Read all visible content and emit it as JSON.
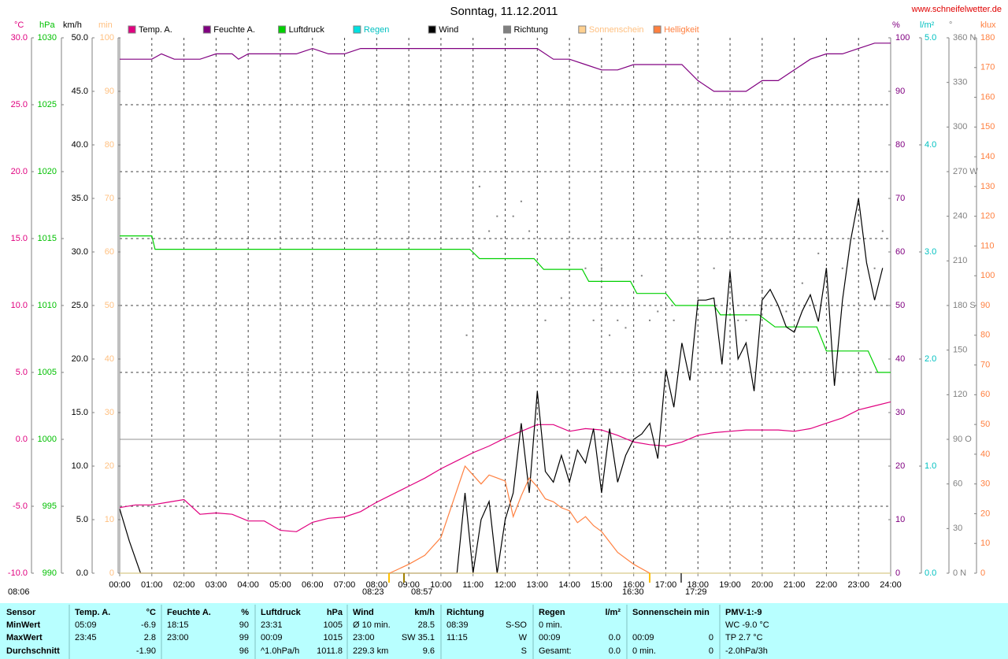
{
  "chart_data": {
    "type": "line",
    "title": "Sonntag, 11.12.2011",
    "source": "www.schneifelwetter.de",
    "grid": true,
    "xlim": [
      0,
      24
    ],
    "xticks": [
      {
        "value": 0,
        "label": "00:00"
      },
      {
        "value": 1,
        "label": "01:00"
      },
      {
        "value": 2,
        "label": "02:00"
      },
      {
        "value": 3,
        "label": "03:00"
      },
      {
        "value": 4,
        "label": "04:00"
      },
      {
        "value": 5,
        "label": "05:00"
      },
      {
        "value": 6,
        "label": "06:00"
      },
      {
        "value": 7,
        "label": "07:00"
      },
      {
        "value": 8,
        "label": "08:00"
      },
      {
        "value": 9,
        "label": "09:00"
      },
      {
        "value": 10,
        "label": "10:00"
      },
      {
        "value": 11,
        "label": "11:00"
      },
      {
        "value": 12,
        "label": "12:00"
      },
      {
        "value": 13,
        "label": "13:00"
      },
      {
        "value": 14,
        "label": "14:00"
      },
      {
        "value": 15,
        "label": "15:00"
      },
      {
        "value": 16,
        "label": "16:00"
      },
      {
        "value": 17,
        "label": "17:00"
      },
      {
        "value": 18,
        "label": "18:00"
      },
      {
        "value": 19,
        "label": "19:00"
      },
      {
        "value": 20,
        "label": "20:00"
      },
      {
        "value": 21,
        "label": "21:00"
      },
      {
        "value": 22,
        "label": "22:00"
      },
      {
        "value": 23,
        "label": "23:00"
      },
      {
        "value": 24,
        "label": "24:00"
      }
    ],
    "axes": [
      {
        "label": "°C",
        "color": "#e0007f",
        "lim": [
          -10,
          30
        ],
        "ticks": [
          {
            "value": -10,
            "label": "-10.0"
          },
          {
            "value": -5,
            "label": "-5.0"
          },
          {
            "value": 0,
            "label": "0.0"
          },
          {
            "value": 5,
            "label": "5.0"
          },
          {
            "value": 10,
            "label": "10.0"
          },
          {
            "value": 15,
            "label": "15.0"
          },
          {
            "value": 20,
            "label": "20.0"
          },
          {
            "value": 25,
            "label": "25.0"
          },
          {
            "value": 30,
            "label": "30.0"
          }
        ]
      },
      {
        "label": "hPa",
        "color": "#00c000",
        "lim": [
          990,
          1030
        ],
        "ticks": [
          990,
          995,
          1000,
          1005,
          1010,
          1015,
          1020,
          1025,
          1030
        ]
      },
      {
        "label": "km/h",
        "color": "#000000",
        "lim": [
          0,
          50
        ],
        "ticks": [
          {
            "value": 0,
            "label": "0.0"
          },
          {
            "value": 5,
            "label": "5.0"
          },
          {
            "value": 10,
            "label": "10.0"
          },
          {
            "value": 15,
            "label": "15.0"
          },
          {
            "value": 20,
            "label": "20.0"
          },
          {
            "value": 25,
            "label": "25.0"
          },
          {
            "value": 30,
            "label": "30.0"
          },
          {
            "value": 35,
            "label": "35.0"
          },
          {
            "value": 40,
            "label": "40.0"
          },
          {
            "value": 45,
            "label": "45.0"
          },
          {
            "value": 50,
            "label": "50.0"
          }
        ]
      },
      {
        "label": "min",
        "color": "#ffc080",
        "lim": [
          0,
          100
        ],
        "ticks": [
          0,
          10,
          20,
          30,
          40,
          50,
          60,
          70,
          80,
          90,
          100
        ]
      },
      {
        "label": "%",
        "color": "#800080",
        "lim": [
          0,
          100
        ],
        "ticks": [
          0,
          10,
          20,
          30,
          40,
          50,
          60,
          70,
          80,
          90,
          100
        ]
      },
      {
        "label": "l/m²",
        "color": "#00c0c0",
        "lim": [
          0,
          5
        ],
        "ticks": [
          {
            "value": 0,
            "label": "0.0"
          },
          {
            "value": 1,
            "label": "1.0"
          },
          {
            "value": 2,
            "label": "2.0"
          },
          {
            "value": 3,
            "label": "3.0"
          },
          {
            "value": 4,
            "label": "4.0"
          },
          {
            "value": 5,
            "label": "5.0"
          }
        ]
      },
      {
        "label": "°",
        "color": "#808080",
        "lim": [
          0,
          360
        ],
        "ticks": [
          {
            "value": 0,
            "label": "0 N"
          },
          30,
          60,
          {
            "value": 90,
            "label": "90 O"
          },
          120,
          150,
          {
            "value": 180,
            "label": "180 S"
          },
          210,
          240,
          {
            "value": 270,
            "label": "270 W"
          },
          300,
          330,
          {
            "value": 360,
            "label": "360 N"
          }
        ]
      },
      {
        "label": "klux",
        "color": "#ff8040",
        "lim": [
          0,
          180
        ],
        "ticks": [
          0,
          10,
          20,
          30,
          40,
          50,
          60,
          70,
          80,
          90,
          100,
          110,
          120,
          130,
          140,
          150,
          160,
          170,
          180
        ]
      }
    ],
    "series": [
      {
        "name": "Temp. A.",
        "color": "#e0007f",
        "axis": 0,
        "x": [
          0,
          0.5,
          1,
          1.5,
          2,
          2.5,
          3,
          3.5,
          4,
          4.5,
          5,
          5.5,
          6,
          6.5,
          7,
          7.5,
          8,
          8.5,
          9,
          9.5,
          10,
          10.5,
          11,
          11.5,
          12,
          12.5,
          13,
          13.5,
          14,
          14.5,
          15,
          15.5,
          16,
          16.5,
          17,
          17.5,
          18,
          18.5,
          19,
          19.5,
          20,
          20.5,
          21,
          21.5,
          22,
          22.5,
          23,
          23.5,
          24
        ],
        "values": [
          -5.1,
          -4.9,
          -4.9,
          -4.7,
          -4.5,
          -5.6,
          -5.5,
          -5.6,
          -6.1,
          -6.1,
          -6.8,
          -6.9,
          -6.2,
          -5.9,
          -5.8,
          -5.4,
          -4.7,
          -4.1,
          -3.5,
          -2.9,
          -2.2,
          -1.6,
          -1.0,
          -0.5,
          0.1,
          0.6,
          1.1,
          1.1,
          0.6,
          0.8,
          0.7,
          0.3,
          -0.2,
          -0.4,
          -0.5,
          -0.2,
          0.3,
          0.5,
          0.6,
          0.7,
          0.7,
          0.7,
          0.6,
          0.8,
          1.2,
          1.6,
          2.2,
          2.5,
          2.8
        ]
      },
      {
        "name": "Feuchte A.",
        "color": "#800080",
        "axis": 4,
        "x": [
          0,
          1,
          1.3,
          1.7,
          2.5,
          3,
          3.5,
          3.7,
          4,
          5,
          5.5,
          6,
          6.5,
          7,
          7.5,
          13,
          13.5,
          14,
          14.5,
          15,
          15.5,
          16,
          17,
          17.5,
          18,
          18.5,
          19,
          19.5,
          20,
          20.5,
          21,
          21.5,
          22,
          22.5,
          23,
          23.5,
          24
        ],
        "values": [
          96,
          96,
          97,
          96,
          96,
          97,
          97,
          96,
          97,
          97,
          97,
          98,
          97,
          97,
          98,
          98,
          96,
          96,
          95,
          94,
          94,
          95,
          95,
          95,
          92,
          90,
          90,
          90,
          92,
          92,
          94,
          96,
          97,
          97,
          98,
          99,
          99
        ]
      },
      {
        "name": "Luftdruck",
        "color": "#00d000",
        "axis": 1,
        "x": [
          0,
          1,
          1.1,
          10.9,
          11.2,
          12.9,
          13.2,
          14.4,
          14.6,
          15.9,
          16.1,
          17,
          17.3,
          18.5,
          18.7,
          19.9,
          20.4,
          21.7,
          22,
          23.3,
          23.6,
          24
        ],
        "values": [
          1015.2,
          1015.2,
          1014.2,
          1014.2,
          1013.5,
          1013.5,
          1012.7,
          1012.7,
          1011.8,
          1011.8,
          1010.9,
          1010.9,
          1010.0,
          1010.0,
          1009.3,
          1009.3,
          1008.4,
          1008.4,
          1006.6,
          1006.6,
          1005.0,
          1005.0
        ]
      },
      {
        "name": "Regen",
        "color": "#00e0e0",
        "axis": 5,
        "x": [
          0,
          24
        ],
        "values": [
          0,
          0
        ]
      },
      {
        "name": "Wind",
        "color": "#000000",
        "axis": 2,
        "x": [
          0,
          0.3,
          0.65,
          10.5,
          10.75,
          11,
          11.25,
          11.5,
          11.75,
          12,
          12.25,
          12.5,
          12.75,
          13,
          13.25,
          13.5,
          13.75,
          14,
          14.25,
          14.5,
          14.75,
          15,
          15.25,
          15.5,
          15.75,
          16,
          16.25,
          16.5,
          16.75,
          17,
          17.25,
          17.5,
          17.75,
          18,
          18.25,
          18.5,
          18.75,
          19,
          19.25,
          19.5,
          19.75,
          20,
          20.25,
          20.5,
          20.75,
          21,
          21.25,
          21.5,
          21.75,
          22,
          22.25,
          22.5,
          22.75,
          23,
          23.25,
          23.5,
          23.75
        ],
        "values": [
          6.0,
          3.0,
          0,
          0,
          7.5,
          0,
          5.0,
          6.7,
          0,
          5.0,
          7.5,
          14.0,
          7.5,
          17.0,
          9.5,
          8.5,
          11.0,
          8.5,
          11.5,
          10.3,
          13.5,
          7.5,
          13.5,
          8.5,
          11.0,
          12.5,
          13.0,
          14.0,
          10.7,
          19.0,
          15.5,
          21.5,
          18.0,
          25.5,
          25.5,
          25.7,
          19.5,
          28.2,
          20.0,
          21.5,
          17.0,
          25.5,
          26.5,
          25.0,
          23.0,
          22.5,
          24.5,
          26.0,
          23.5,
          28.5,
          17.5,
          25.5,
          31.0,
          35.0,
          29.0,
          25.5,
          28.5
        ]
      },
      {
        "name": "Richtung",
        "color": "#808080",
        "axis": 6,
        "type": "scatter",
        "x": [
          10.8,
          11.2,
          11.5,
          11.75,
          12.25,
          12.5,
          12.75,
          13.25,
          13.75,
          14,
          14.5,
          14.75,
          15,
          15.25,
          15.5,
          15.75,
          16.25,
          16.5,
          16.75,
          17.25,
          18.5,
          19.25,
          19.5,
          20,
          20.75,
          21.25,
          21.75,
          22.5,
          23.5,
          23.75
        ],
        "values": [
          160,
          260,
          230,
          240,
          240,
          250,
          230,
          170,
          185,
          174,
          205,
          170,
          205,
          160,
          170,
          165,
          200,
          170,
          176,
          170,
          205,
          170,
          170,
          190,
          176,
          195,
          215,
          205,
          205,
          230
        ]
      },
      {
        "name": "Sonnenschein",
        "color": "#ffd090",
        "axis": 3,
        "x": [
          0,
          24
        ],
        "values": [
          0,
          0
        ]
      },
      {
        "name": "Helligkeit",
        "color": "#ff8040",
        "axis": 7,
        "x": [
          8.4,
          9,
          9.5,
          10,
          10.5,
          10.75,
          11,
          11.25,
          11.5,
          11.75,
          12,
          12.25,
          12.5,
          12.75,
          13,
          13.25,
          13.5,
          13.75,
          14,
          14.25,
          14.5,
          14.75,
          15,
          15.5,
          16,
          16.5
        ],
        "values": [
          0,
          3,
          6,
          12,
          28,
          36,
          33,
          30,
          33,
          32,
          31,
          19,
          26,
          32,
          29,
          25,
          24,
          22,
          21,
          17,
          19,
          16,
          14,
          7,
          3,
          0
        ]
      }
    ],
    "annotations": [
      "08:06",
      "08:23",
      "08:57",
      "16:30",
      "17:29"
    ]
  },
  "table": {
    "header": "Sensor",
    "rows": [
      "MinWert",
      "MaxWert",
      "Durchschnitt"
    ],
    "groups": [
      {
        "name": "Temp. A.",
        "unit": "°C",
        "cells": [
          {
            "l": "05:09",
            "r": "-6.9"
          },
          {
            "l": "23:45",
            "r": "2.8"
          },
          {
            "r": "-1.90"
          }
        ]
      },
      {
        "name": "Feuchte A.",
        "unit": "%",
        "cells": [
          {
            "l": "18:15",
            "r": "90"
          },
          {
            "l": "23:00",
            "r": "99"
          },
          {
            "r": "96"
          }
        ]
      },
      {
        "name": "Luftdruck",
        "unit": "hPa",
        "cells": [
          {
            "l": "23:31",
            "r": "1005"
          },
          {
            "l": "00:09",
            "r": "1015"
          },
          {
            "l": "^1.0hPa/h",
            "r": "1011.8"
          }
        ]
      },
      {
        "name": "Wind",
        "unit": "km/h",
        "cells": [
          {
            "l": "Ø 10 min.",
            "r": "28.5"
          },
          {
            "l": "23:00",
            "r": "SW 35.1"
          },
          {
            "l": "229.3 km",
            "r": "9.6"
          }
        ]
      },
      {
        "name": "Richtung",
        "cells": [
          {
            "l": "08:39",
            "r": "S-SO"
          },
          {
            "l": "11:15",
            "r": "W"
          },
          {
            "r": "S"
          }
        ]
      },
      {
        "name": "Regen",
        "unit": "l/m²",
        "cells": [
          {
            "l": "0 min."
          },
          {
            "l": "00:09",
            "r": "0.0"
          },
          {
            "l": "Gesamt:",
            "r": "0.0"
          }
        ]
      },
      {
        "name": "Sonnenschein min",
        "cells": [
          {},
          {
            "l": "00:09",
            "r": "0"
          },
          {
            "l": "0 min.",
            "r": "0"
          }
        ]
      },
      {
        "name": "PMV-1:-9",
        "cells": [
          {
            "l": "WC -9.0 °C"
          },
          {
            "l": "TP 2.7 °C"
          },
          {
            "l": "-2.0hPa/3h"
          }
        ]
      }
    ]
  }
}
